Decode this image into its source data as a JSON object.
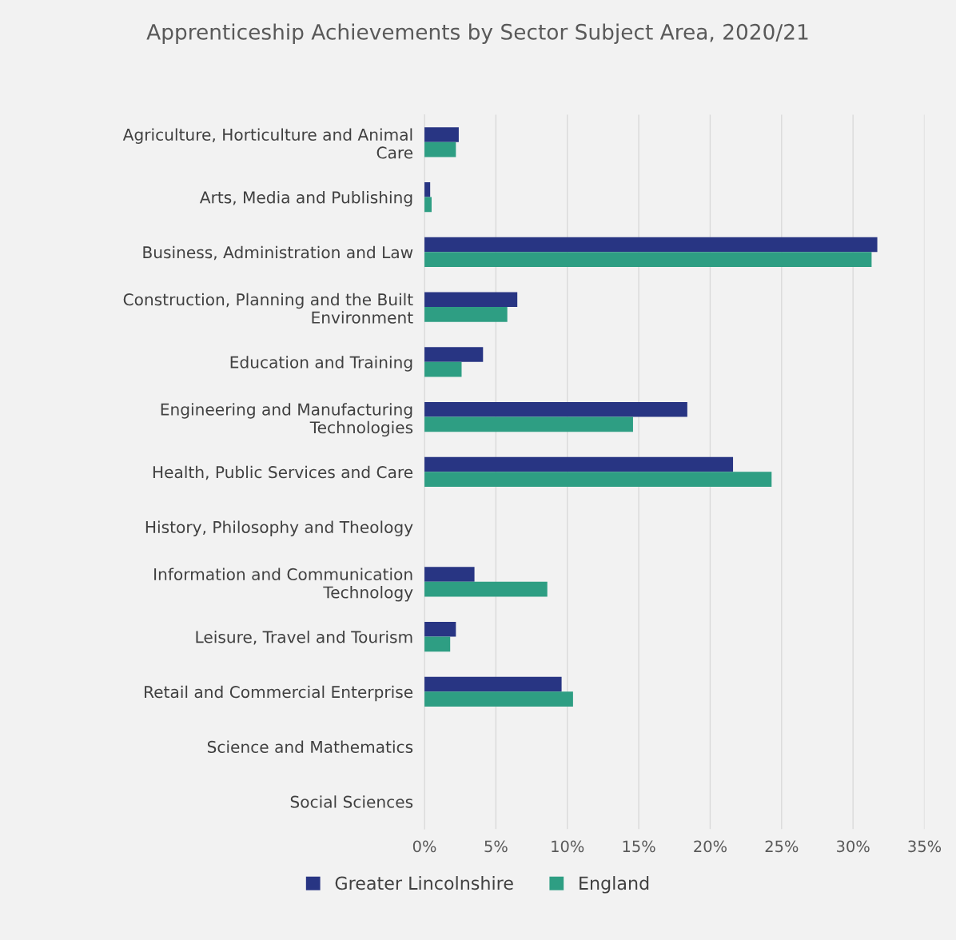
{
  "chart_data": {
    "type": "bar",
    "orientation": "horizontal",
    "title": "Apprenticeship Achievements by Sector Subject Area, 2020/21",
    "categories": [
      "Agriculture, Horticulture and Animal Care",
      "Arts, Media and Publishing",
      "Business, Administration and Law",
      "Construction, Planning and the Built Environment",
      "Education and Training",
      "Engineering and Manufacturing Technologies",
      "Health, Public Services and Care",
      "History, Philosophy and Theology",
      "Information and Communication Technology",
      "Leisure, Travel and Tourism",
      "Retail and Commercial Enterprise",
      "Science and Mathematics",
      "Social Sciences"
    ],
    "series": [
      {
        "name": "Greater Lincolnshire",
        "color": "#283583",
        "values": [
          2.4,
          0.4,
          31.7,
          6.5,
          4.1,
          18.4,
          21.6,
          0,
          3.5,
          2.2,
          9.6,
          0,
          0
        ]
      },
      {
        "name": "England",
        "color": "#2e9e83",
        "values": [
          2.2,
          0.5,
          31.3,
          5.8,
          2.6,
          14.6,
          24.3,
          0,
          8.6,
          1.8,
          10.4,
          0,
          0
        ]
      }
    ],
    "xlim": [
      0,
      35
    ],
    "xticks": [
      {
        "value": 0,
        "label": "0%"
      },
      {
        "value": 5,
        "label": "5%"
      },
      {
        "value": 10,
        "label": "10%"
      },
      {
        "value": 15,
        "label": "15%"
      },
      {
        "value": 20,
        "label": "20%"
      },
      {
        "value": 25,
        "label": "25%"
      },
      {
        "value": 30,
        "label": "30%"
      },
      {
        "value": 35,
        "label": "35%"
      }
    ],
    "grid": "x",
    "legend": "bottom"
  }
}
